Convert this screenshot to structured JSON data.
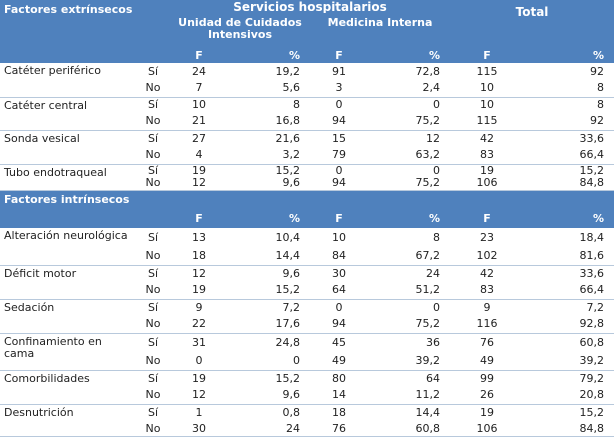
{
  "header": {
    "extrinsic_title": "Factores extrínsecos",
    "services_title": "Servicios hospitalarios",
    "uci_title": "Unidad de Cuidados Intensivos",
    "mi_title": "Medicina Interna",
    "total_title": "Total",
    "col_f": "F",
    "col_pct": "%"
  },
  "extrinsic": [
    {
      "label": "Catéter periférico",
      "rows": [
        {
          "sub": "Sí",
          "v": [
            "24",
            "19,2",
            "91",
            "72,8",
            "115",
            "92"
          ]
        },
        {
          "sub": "No",
          "v": [
            "7",
            "5,6",
            "3",
            "2,4",
            "10",
            "8"
          ]
        }
      ]
    },
    {
      "label": "Catéter central",
      "rows": [
        {
          "sub": "Sí",
          "v": [
            "10",
            "8",
            "0",
            "0",
            "10",
            "8"
          ]
        },
        {
          "sub": "No",
          "v": [
            "21",
            "16,8",
            "94",
            "75,2",
            "115",
            "92"
          ]
        }
      ]
    },
    {
      "label": "Sonda vesical",
      "rows": [
        {
          "sub": "Sí",
          "v": [
            "27",
            "21,6",
            "15",
            "12",
            "42",
            "33,6"
          ]
        },
        {
          "sub": "No",
          "v": [
            "4",
            "3,2",
            "79",
            "63,2",
            "83",
            "66,4"
          ]
        }
      ]
    },
    {
      "label": "Tubo endotraqueal",
      "rows": [
        {
          "sub": "Sí",
          "v": [
            "19",
            "15,2",
            "0",
            "0",
            "19",
            "15,2"
          ]
        },
        {
          "sub": "No",
          "v": [
            "12",
            "9,6",
            "94",
            "75,2",
            "106",
            "84,8"
          ]
        }
      ]
    }
  ],
  "intrinsic_title": "Factores  intrínsecos",
  "intrinsic": [
    {
      "label": "Alteración neurológica",
      "rows": [
        {
          "sub": "Sí",
          "v": [
            "13",
            "10,4",
            "10",
            "8",
            "23",
            "18,4"
          ]
        },
        {
          "sub": "No",
          "v": [
            "18",
            "14,4",
            "84",
            "67,2",
            "102",
            "81,6"
          ]
        }
      ]
    },
    {
      "label": "Déficit motor",
      "rows": [
        {
          "sub": "Sí",
          "v": [
            "12",
            "9,6",
            "30",
            "24",
            "42",
            "33,6"
          ]
        },
        {
          "sub": "No",
          "v": [
            "19",
            "15,2",
            "64",
            "51,2",
            "83",
            "66,4"
          ]
        }
      ]
    },
    {
      "label": "Sedación",
      "rows": [
        {
          "sub": "Sí",
          "v": [
            "9",
            "7,2",
            "0",
            "0",
            "9",
            "7,2"
          ]
        },
        {
          "sub": "No",
          "v": [
            "22",
            "17,6",
            "94",
            "75,2",
            "116",
            "92,8"
          ]
        }
      ]
    },
    {
      "label": "Confinamiento en cama",
      "rows": [
        {
          "sub": "Sí",
          "v": [
            "31",
            "24,8",
            "45",
            "36",
            "76",
            "60,8"
          ]
        },
        {
          "sub": "No",
          "v": [
            "0",
            "0",
            "49",
            "39,2",
            "49",
            "39,2"
          ]
        }
      ]
    },
    {
      "label": "Comorbilidades",
      "rows": [
        {
          "sub": "Sí",
          "v": [
            "19",
            "15,2",
            "80",
            "64",
            "99",
            "79,2"
          ]
        },
        {
          "sub": "No",
          "v": [
            "12",
            "9,6",
            "14",
            "11,2",
            "26",
            "20,8"
          ]
        }
      ]
    },
    {
      "label": "Desnutrición",
      "rows": [
        {
          "sub": "Sí",
          "v": [
            "1",
            "0,8",
            "18",
            "14,4",
            "19",
            "15,2"
          ]
        },
        {
          "sub": "No",
          "v": [
            "30",
            "24",
            "76",
            "60,8",
            "106",
            "84,8"
          ]
        }
      ]
    }
  ]
}
